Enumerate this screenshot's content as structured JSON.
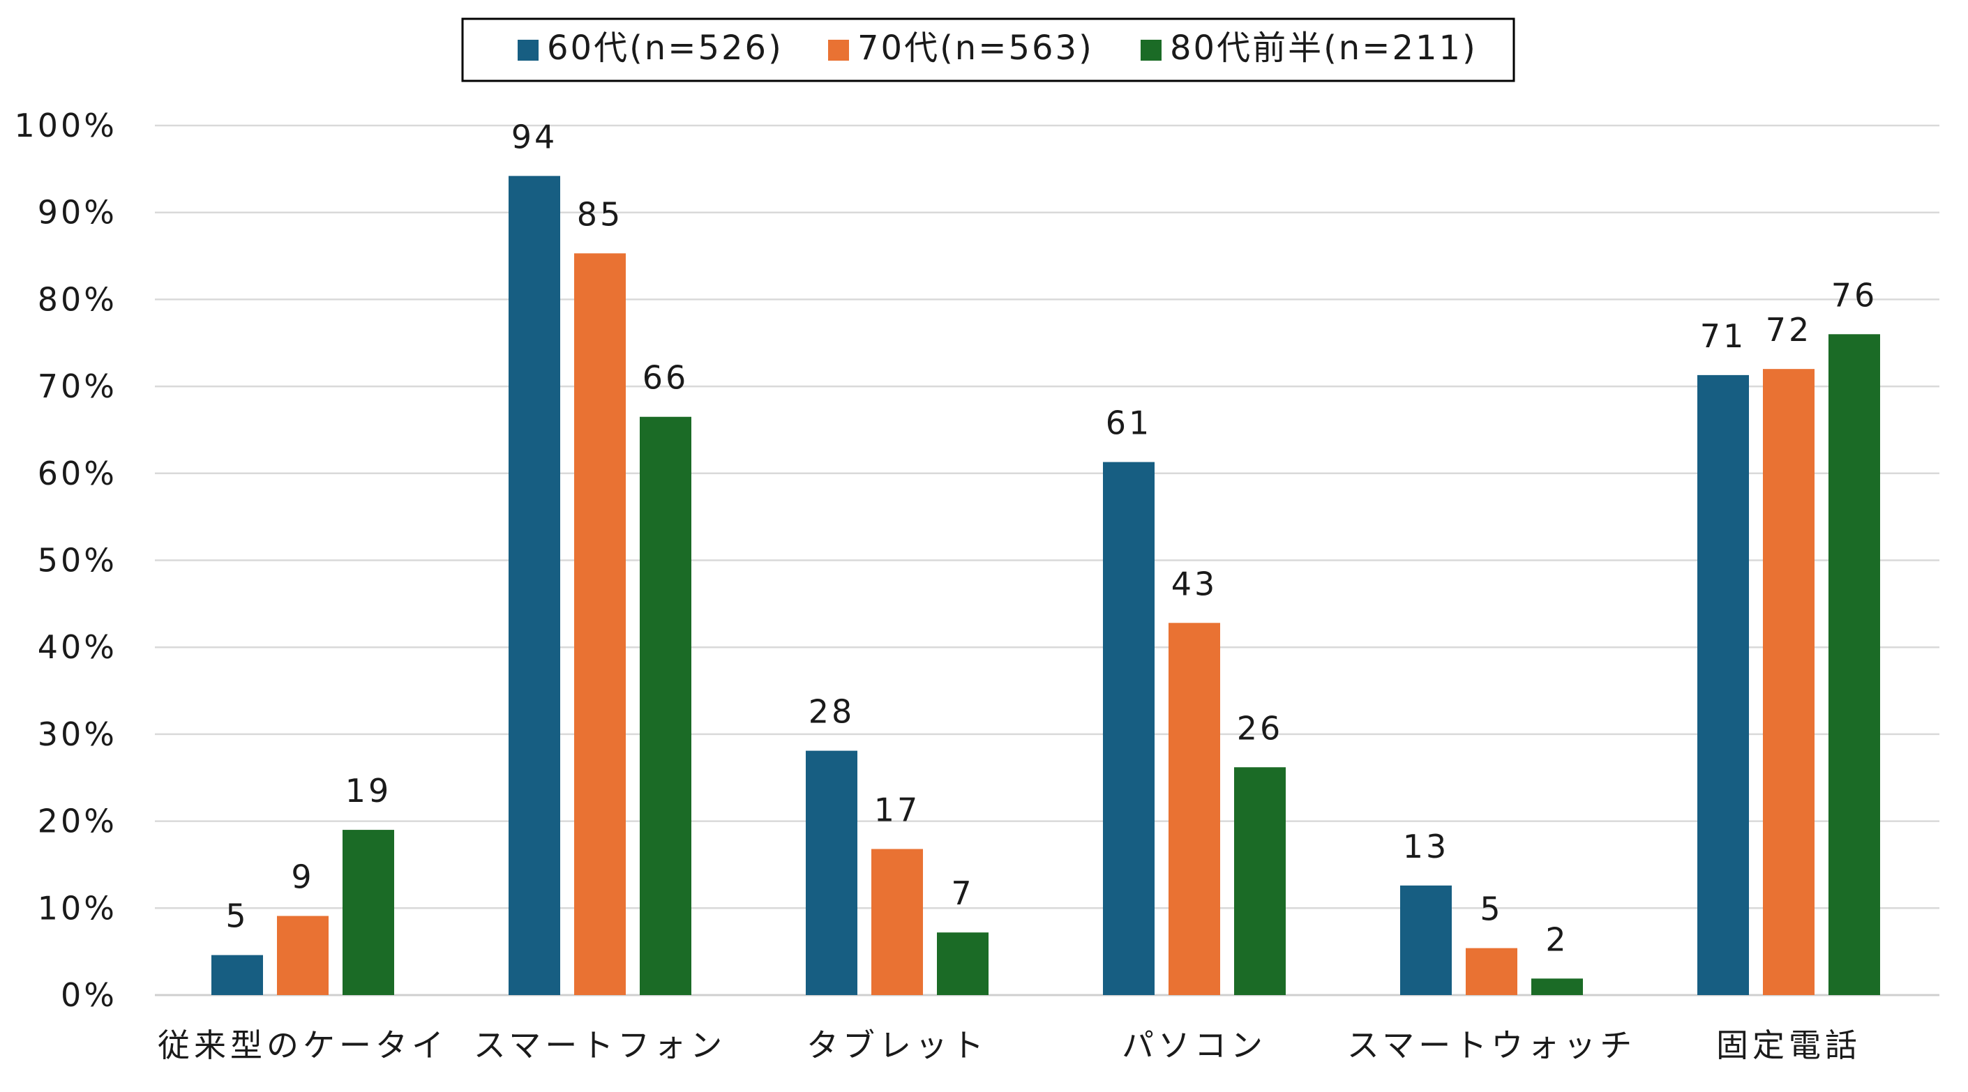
{
  "chart_data": {
    "type": "bar",
    "categories": [
      "従来型のケータイ",
      "スマートフォン",
      "タブレット",
      "パソコン",
      "スマートウォッチ",
      "固定電話"
    ],
    "series": [
      {
        "name": "60代(n=526)",
        "color": "#175e82",
        "values": [
          4.6,
          94.2,
          28.1,
          61.3,
          12.6,
          71.3
        ],
        "labels": [
          "5",
          "94",
          "28",
          "61",
          "13",
          "71"
        ]
      },
      {
        "name": "70代(n=563)",
        "color": "#e97233",
        "values": [
          9.1,
          85.3,
          16.8,
          42.8,
          5.4,
          72.0
        ],
        "labels": [
          "9",
          "85",
          "17",
          "43",
          "5",
          "72"
        ]
      },
      {
        "name": "80代前半(n=211)",
        "color": "#1b6b26",
        "values": [
          19.0,
          66.5,
          7.2,
          26.2,
          1.9,
          76.0
        ],
        "labels": [
          "19",
          "66",
          "7",
          "26",
          "2",
          "76"
        ]
      }
    ],
    "ylim": [
      0,
      100
    ],
    "yticks": [
      "0%",
      "10%",
      "20%",
      "30%",
      "40%",
      "50%",
      "60%",
      "70%",
      "80%",
      "90%",
      "100%"
    ],
    "grid": true,
    "legend_position": "top-center"
  }
}
